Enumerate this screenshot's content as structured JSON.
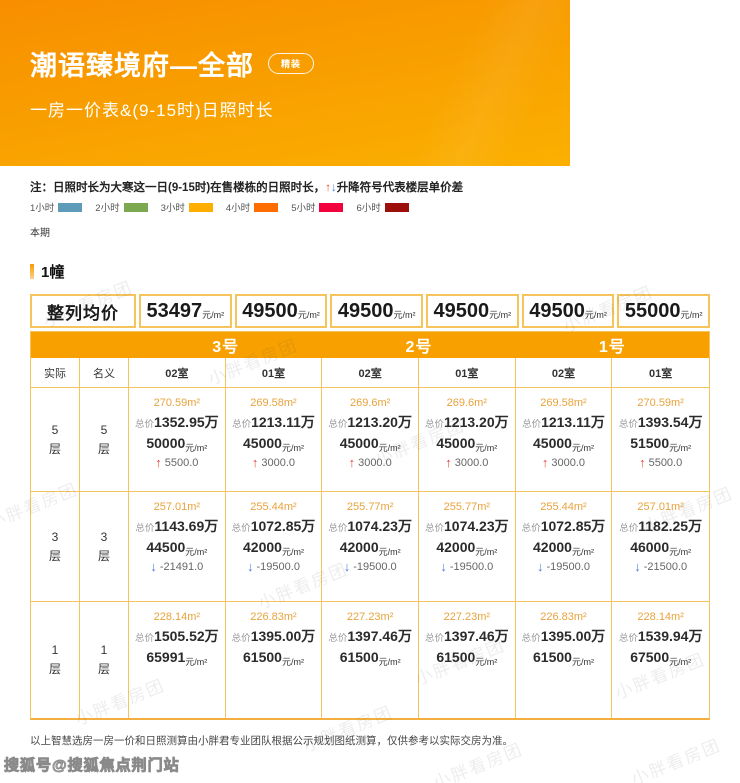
{
  "header": {
    "title": "潮语臻境府—全部",
    "badge": "精装",
    "subtitle": "一房一价表&(9-15时)日照时长"
  },
  "note": {
    "prefix": "注：日照时长为大寒这一日(9-15时)在售楼栋的日照时长，",
    "up_glyph": "↑",
    "down_glyph": "↓",
    "suffix": "升降符号代表楼层单价差"
  },
  "legend": {
    "items": [
      {
        "label": "1小时",
        "color": "#5E9BB8"
      },
      {
        "label": "2小时",
        "color": "#7CA850"
      },
      {
        "label": "3小时",
        "color": "#FFAE00"
      },
      {
        "label": "4小时",
        "color": "#FF6D00"
      },
      {
        "label": "5小时",
        "color": "#F2013C"
      },
      {
        "label": "6小时",
        "color": "#9C0F0B"
      }
    ]
  },
  "period_label": "本期",
  "section": {
    "title": "1幢"
  },
  "avg_row": {
    "label": "整列均价",
    "unit": "元/m²",
    "prices": [
      "53497",
      "49500",
      "49500",
      "49500",
      "49500",
      "55000"
    ]
  },
  "table": {
    "buildings": [
      "3号",
      "2号",
      "1号"
    ],
    "floor_headers": [
      "实际",
      "名义"
    ],
    "room_headers": [
      "02室",
      "01室",
      "02室",
      "01室",
      "02室",
      "01室"
    ],
    "floor_word": "层",
    "total_prefix": "总价",
    "total_suffix": "万",
    "area_suffix": "m²",
    "unit_suffix": "元/m²",
    "glyphs": {
      "up": "↑",
      "down": "↓"
    },
    "rows": [
      {
        "actual": "5",
        "nominal": "5",
        "units": [
          {
            "area": "270.59",
            "total": "1352.95",
            "unit": "50000",
            "dir": "up",
            "delta": "5500.0"
          },
          {
            "area": "269.58",
            "total": "1213.11",
            "unit": "45000",
            "dir": "up",
            "delta": "3000.0"
          },
          {
            "area": "269.6",
            "total": "1213.20",
            "unit": "45000",
            "dir": "up",
            "delta": "3000.0"
          },
          {
            "area": "269.6",
            "total": "1213.20",
            "unit": "45000",
            "dir": "up",
            "delta": "3000.0"
          },
          {
            "area": "269.58",
            "total": "1213.11",
            "unit": "45000",
            "dir": "up",
            "delta": "3000.0"
          },
          {
            "area": "270.59",
            "total": "1393.54",
            "unit": "51500",
            "dir": "up",
            "delta": "5500.0"
          }
        ]
      },
      {
        "actual": "3",
        "nominal": "3",
        "units": [
          {
            "area": "257.01",
            "total": "1143.69",
            "unit": "44500",
            "dir": "down",
            "delta": "-21491.0"
          },
          {
            "area": "255.44",
            "total": "1072.85",
            "unit": "42000",
            "dir": "down",
            "delta": "-19500.0"
          },
          {
            "area": "255.77",
            "total": "1074.23",
            "unit": "42000",
            "dir": "down",
            "delta": "-19500.0"
          },
          {
            "area": "255.77",
            "total": "1074.23",
            "unit": "42000",
            "dir": "down",
            "delta": "-19500.0"
          },
          {
            "area": "255.44",
            "total": "1072.85",
            "unit": "42000",
            "dir": "down",
            "delta": "-19500.0"
          },
          {
            "area": "257.01",
            "total": "1182.25",
            "unit": "46000",
            "dir": "down",
            "delta": "-21500.0"
          }
        ]
      },
      {
        "actual": "1",
        "nominal": "1",
        "units": [
          {
            "area": "228.14",
            "total": "1505.52",
            "unit": "65991",
            "dir": null,
            "delta": null
          },
          {
            "area": "226.83",
            "total": "1395.00",
            "unit": "61500",
            "dir": null,
            "delta": null
          },
          {
            "area": "227.23",
            "total": "1397.46",
            "unit": "61500",
            "dir": null,
            "delta": null
          },
          {
            "area": "227.23",
            "total": "1397.46",
            "unit": "61500",
            "dir": null,
            "delta": null
          },
          {
            "area": "226.83",
            "total": "1395.00",
            "unit": "61500",
            "dir": null,
            "delta": null
          },
          {
            "area": "228.14",
            "total": "1539.94",
            "unit": "67500",
            "dir": null,
            "delta": null
          }
        ]
      }
    ]
  },
  "footer": {
    "note": "以上智慧选房一房一价和日照测算由小胖君专业团队根据公示规划图纸测算，仅供参考以实际交房为准。",
    "sohu": "搜狐号@搜狐焦点荆门站"
  },
  "watermark": {
    "text": "小胖看房团"
  },
  "colors": {
    "hero_orange_top": "#F88E00",
    "hero_orange_bottom": "#FBB000",
    "band_orange": "#F7A000",
    "cell_border": "#F6C35C",
    "area_amber": "#E8A33C",
    "up_red": "#E8453C",
    "down_blue": "#4D79E8"
  }
}
